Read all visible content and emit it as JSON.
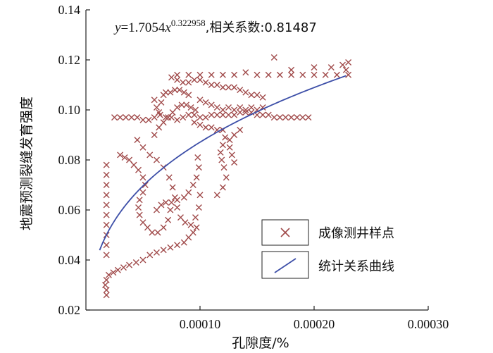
{
  "chart_data": {
    "type": "scatter",
    "title": "",
    "annotation": {
      "y_var": "y",
      "eq_mid": "=1.7054",
      "x_var": "x",
      "exponent": "0.322958",
      "correlation_label": ",相关系数:0.81487"
    },
    "xlabel": "孔隙度/%",
    "ylabel": "地震预测裂缝发育强度",
    "xlim": [
      0,
      0.0003
    ],
    "ylim": [
      0.02,
      0.14
    ],
    "x_ticks": [
      "0.00010",
      "0.00020",
      "0.00030"
    ],
    "x_tick_values": [
      0.0001,
      0.0002,
      0.0003
    ],
    "y_ticks": [
      "0.02",
      "0.04",
      "0.06",
      "0.08",
      "0.10",
      "0.12",
      "0.14"
    ],
    "y_tick_values": [
      0.02,
      0.04,
      0.06,
      0.08,
      0.1,
      0.12,
      0.14
    ],
    "grid": false,
    "legend_position": "bottom-right",
    "colors": {
      "marker": "#a04a4a",
      "curve": "#3d4fa8",
      "axis": "#222222"
    },
    "series": [
      {
        "name": "成像测井样点",
        "kind": "scatter",
        "marker": "x",
        "points": [
          [
            1.8e-05,
            0.026
          ],
          [
            1.8e-05,
            0.028
          ],
          [
            1.7e-05,
            0.03
          ],
          [
            1.8e-05,
            0.032
          ],
          [
            2e-05,
            0.034
          ],
          [
            2.4e-05,
            0.035
          ],
          [
            2.8e-05,
            0.036
          ],
          [
            3.3e-05,
            0.037
          ],
          [
            3.8e-05,
            0.038
          ],
          [
            4.4e-05,
            0.039
          ],
          [
            5e-05,
            0.04
          ],
          [
            5.6e-05,
            0.042
          ],
          [
            6.2e-05,
            0.043
          ],
          [
            6.8e-05,
            0.044
          ],
          [
            7.4e-05,
            0.045
          ],
          [
            8e-05,
            0.046
          ],
          [
            8.6e-05,
            0.047
          ],
          [
            9e-05,
            0.049
          ],
          [
            9.4e-05,
            0.051
          ],
          [
            9.7e-05,
            0.053
          ],
          [
            1.8e-05,
            0.042
          ],
          [
            1.8e-05,
            0.046
          ],
          [
            1.8e-05,
            0.05
          ],
          [
            1.8e-05,
            0.054
          ],
          [
            1.8e-05,
            0.058
          ],
          [
            1.8e-05,
            0.062
          ],
          [
            1.8e-05,
            0.066
          ],
          [
            1.8e-05,
            0.07
          ],
          [
            1.8e-05,
            0.074
          ],
          [
            1.8e-05,
            0.078
          ],
          [
            3e-05,
            0.082
          ],
          [
            3.4e-05,
            0.081
          ],
          [
            3.8e-05,
            0.08
          ],
          [
            4.2e-05,
            0.078
          ],
          [
            4.6e-05,
            0.076
          ],
          [
            5e-05,
            0.073
          ],
          [
            5.2e-05,
            0.07
          ],
          [
            5e-05,
            0.067
          ],
          [
            4.7e-05,
            0.064
          ],
          [
            4.6e-05,
            0.061
          ],
          [
            4.7e-05,
            0.058
          ],
          [
            5e-05,
            0.055
          ],
          [
            5.4e-05,
            0.053
          ],
          [
            5.8e-05,
            0.051
          ],
          [
            6.3e-05,
            0.051
          ],
          [
            6.8e-05,
            0.053
          ],
          [
            7.2e-05,
            0.056
          ],
          [
            7.4e-05,
            0.06
          ],
          [
            6.2e-05,
            0.06
          ],
          [
            6.6e-05,
            0.062
          ],
          [
            7e-05,
            0.063
          ],
          [
            7.5e-05,
            0.063
          ],
          [
            8e-05,
            0.064
          ],
          [
            8.6e-05,
            0.065
          ],
          [
            9e-05,
            0.067
          ],
          [
            9.4e-05,
            0.07
          ],
          [
            9.7e-05,
            0.073
          ],
          [
            9.9e-05,
            0.077
          ],
          [
            9.8e-05,
            0.081
          ],
          [
            4.5e-05,
            0.088
          ],
          [
            5e-05,
            0.085
          ],
          [
            5.6e-05,
            0.082
          ],
          [
            6.2e-05,
            0.08
          ],
          [
            6.8e-05,
            0.077
          ],
          [
            7.3e-05,
            0.073
          ],
          [
            7.6e-05,
            0.069
          ],
          [
            7.8e-05,
            0.065
          ],
          [
            8e-05,
            0.061
          ],
          [
            8.3e-05,
            0.057
          ],
          [
            8.7e-05,
            0.055
          ],
          [
            9.2e-05,
            0.054
          ],
          [
            9.6e-05,
            0.057
          ],
          [
            9.9e-05,
            0.061
          ],
          [
            0.0001,
            0.066
          ],
          [
            6e-05,
            0.09
          ],
          [
            6.4e-05,
            0.093
          ],
          [
            6.8e-05,
            0.095
          ],
          [
            7.2e-05,
            0.097
          ],
          [
            7.6e-05,
            0.099
          ],
          [
            8e-05,
            0.101
          ],
          [
            8.4e-05,
            0.102
          ],
          [
            8.8e-05,
            0.102
          ],
          [
            9.2e-05,
            0.101
          ],
          [
            9.6e-05,
            0.1
          ],
          [
            2.5e-05,
            0.097
          ],
          [
            3e-05,
            0.097
          ],
          [
            3.5e-05,
            0.097
          ],
          [
            4e-05,
            0.097
          ],
          [
            4.5e-05,
            0.097
          ],
          [
            5e-05,
            0.096
          ],
          [
            5.5e-05,
            0.096
          ],
          [
            6e-05,
            0.097
          ],
          [
            6.5e-05,
            0.098
          ],
          [
            7e-05,
            0.097
          ],
          [
            7.5e-05,
            0.097
          ],
          [
            8e-05,
            0.096
          ],
          [
            8.5e-05,
            0.097
          ],
          [
            9e-05,
            0.098
          ],
          [
            9.5e-05,
            0.098
          ],
          [
            0.0001,
            0.097
          ],
          [
            0.000105,
            0.097
          ],
          [
            0.00011,
            0.098
          ],
          [
            0.000115,
            0.098
          ],
          [
            0.00012,
            0.098
          ],
          [
            0.000125,
            0.098
          ],
          [
            0.00013,
            0.098
          ],
          [
            0.000135,
            0.099
          ],
          [
            0.00014,
            0.099
          ],
          [
            0.000145,
            0.099
          ],
          [
            0.00015,
            0.098
          ],
          [
            0.000155,
            0.098
          ],
          [
            0.00016,
            0.098
          ],
          [
            0.000165,
            0.097
          ],
          [
            0.00017,
            0.097
          ],
          [
            0.000175,
            0.097
          ],
          [
            0.00018,
            0.097
          ],
          [
            0.000185,
            0.097
          ],
          [
            0.00019,
            0.097
          ],
          [
            0.000195,
            0.097
          ],
          [
            6e-05,
            0.104
          ],
          [
            6.2e-05,
            0.101
          ],
          [
            6.4e-05,
            0.099
          ],
          [
            6.6e-05,
            0.103
          ],
          [
            6.8e-05,
            0.106
          ],
          [
            7e-05,
            0.107
          ],
          [
            7.4e-05,
            0.107
          ],
          [
            7.8e-05,
            0.108
          ],
          [
            8.2e-05,
            0.108
          ],
          [
            8.6e-05,
            0.107
          ],
          [
            9e-05,
            0.106
          ],
          [
            7.5e-05,
            0.113
          ],
          [
            8e-05,
            0.112
          ],
          [
            8.5e-05,
            0.111
          ],
          [
            9e-05,
            0.111
          ],
          [
            9.5e-05,
            0.112
          ],
          [
            0.0001,
            0.112
          ],
          [
            0.000105,
            0.111
          ],
          [
            0.00011,
            0.11
          ],
          [
            0.000115,
            0.11
          ],
          [
            0.00012,
            0.109
          ],
          [
            0.000125,
            0.109
          ],
          [
            0.00013,
            0.109
          ],
          [
            0.000135,
            0.108
          ],
          [
            0.00014,
            0.107
          ],
          [
            0.000145,
            0.106
          ],
          [
            0.00015,
            0.106
          ],
          [
            0.000155,
            0.105
          ],
          [
            8e-05,
            0.114
          ],
          [
            9e-05,
            0.114
          ],
          [
            0.0001,
            0.114
          ],
          [
            0.00011,
            0.114
          ],
          [
            0.00012,
            0.114
          ],
          [
            0.00013,
            0.114
          ],
          [
            0.00014,
            0.115
          ],
          [
            0.00015,
            0.114
          ],
          [
            0.00016,
            0.114
          ],
          [
            0.00017,
            0.114
          ],
          [
            0.00018,
            0.114
          ],
          [
            0.00019,
            0.114
          ],
          [
            0.0002,
            0.114
          ],
          [
            0.00021,
            0.114
          ],
          [
            0.00022,
            0.114
          ],
          [
            0.00023,
            0.114
          ],
          [
            0.000165,
            0.121
          ],
          [
            0.00018,
            0.116
          ],
          [
            0.0002,
            0.117
          ],
          [
            0.000215,
            0.117
          ],
          [
            0.000225,
            0.118
          ],
          [
            0.00023,
            0.119
          ],
          [
            0.000228,
            0.116
          ],
          [
            0.0001,
            0.104
          ],
          [
            0.000105,
            0.103
          ],
          [
            0.00011,
            0.102
          ],
          [
            0.000115,
            0.101
          ],
          [
            0.00012,
            0.1
          ],
          [
            0.000125,
            0.101
          ],
          [
            0.00013,
            0.1
          ],
          [
            0.000135,
            0.101
          ],
          [
            0.00014,
            0.1
          ],
          [
            0.000145,
            0.101
          ],
          [
            0.00015,
            0.1
          ],
          [
            0.000155,
            0.101
          ],
          [
            9.5e-05,
            0.095
          ],
          [
            0.0001,
            0.094
          ],
          [
            0.000105,
            0.093
          ],
          [
            0.00011,
            0.093
          ],
          [
            0.000115,
            0.092
          ],
          [
            0.00012,
            0.092
          ],
          [
            0.000122,
            0.089
          ],
          [
            0.00012,
            0.086
          ],
          [
            0.000118,
            0.083
          ],
          [
            0.000119,
            0.08
          ],
          [
            0.000121,
            0.077
          ],
          [
            0.000123,
            0.073
          ],
          [
            0.00012,
            0.069
          ],
          [
            0.000115,
            0.066
          ],
          [
            0.000135,
            0.092
          ],
          [
            0.00013,
            0.09
          ],
          [
            0.000126,
            0.088
          ],
          [
            0.000126,
            0.085
          ],
          [
            0.000128,
            0.082
          ],
          [
            0.00013,
            0.079
          ]
        ]
      },
      {
        "name": "统计关系曲线",
        "kind": "line",
        "formula": "y=1.7054x^0.322958",
        "a": 1.7054,
        "b": 0.322958,
        "x_range": [
          1.2e-05,
          0.000228
        ]
      }
    ]
  }
}
